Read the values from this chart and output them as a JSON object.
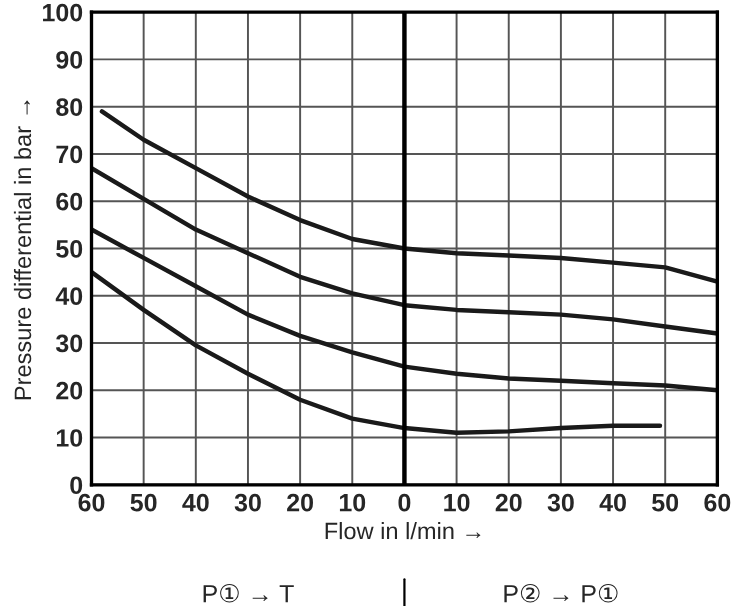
{
  "chart_data": {
    "type": "line",
    "xlabel": "Flow in l/min →",
    "ylabel": "Pressure differential in bar →",
    "annotations": [
      "P① → T",
      "P② → P①"
    ],
    "xlim": [
      -60,
      60
    ],
    "ylim": [
      0,
      100
    ],
    "xticks": [
      {
        "value": -60,
        "label": "60"
      },
      {
        "value": -50,
        "label": "50"
      },
      {
        "value": -40,
        "label": "40"
      },
      {
        "value": -30,
        "label": "30"
      },
      {
        "value": -20,
        "label": "20"
      },
      {
        "value": -10,
        "label": "10"
      },
      0,
      10,
      20,
      30,
      40,
      50,
      60
    ],
    "yticks": [
      0,
      10,
      20,
      30,
      40,
      50,
      60,
      70,
      80,
      90,
      100
    ],
    "grid": true,
    "ref_lines": [
      {
        "axis": "x",
        "value": 0,
        "color": "#000000"
      }
    ],
    "series": [
      {
        "color": "#1a1a1a",
        "x": [
          -58,
          -50,
          -40,
          -30,
          -20,
          -10,
          0,
          10,
          20,
          30,
          40,
          50,
          60
        ],
        "values": [
          79,
          73,
          67,
          61,
          56,
          52,
          50,
          49,
          48.5,
          48,
          47,
          46,
          43
        ]
      },
      {
        "color": "#1a1a1a",
        "x": [
          -60,
          -50,
          -40,
          -30,
          -20,
          -10,
          0,
          10,
          20,
          30,
          40,
          50,
          60
        ],
        "values": [
          67,
          60.5,
          54,
          49,
          44,
          40.5,
          38,
          37,
          36.5,
          36,
          35,
          33.5,
          32
        ]
      },
      {
        "color": "#1a1a1a",
        "x": [
          -60,
          -50,
          -40,
          -30,
          -20,
          -10,
          0,
          10,
          20,
          30,
          40,
          50,
          60
        ],
        "values": [
          54,
          48,
          42,
          36,
          31.5,
          28,
          25,
          23.5,
          22.5,
          22,
          21.5,
          21,
          20
        ]
      },
      {
        "color": "#1a1a1a",
        "x": [
          -60,
          -50,
          -40,
          -30,
          -20,
          -10,
          0,
          10,
          20,
          30,
          40,
          49
        ],
        "values": [
          45,
          37,
          29.5,
          23.5,
          18,
          14,
          12,
          11,
          11.3,
          12,
          12.5,
          12.5
        ]
      }
    ]
  }
}
